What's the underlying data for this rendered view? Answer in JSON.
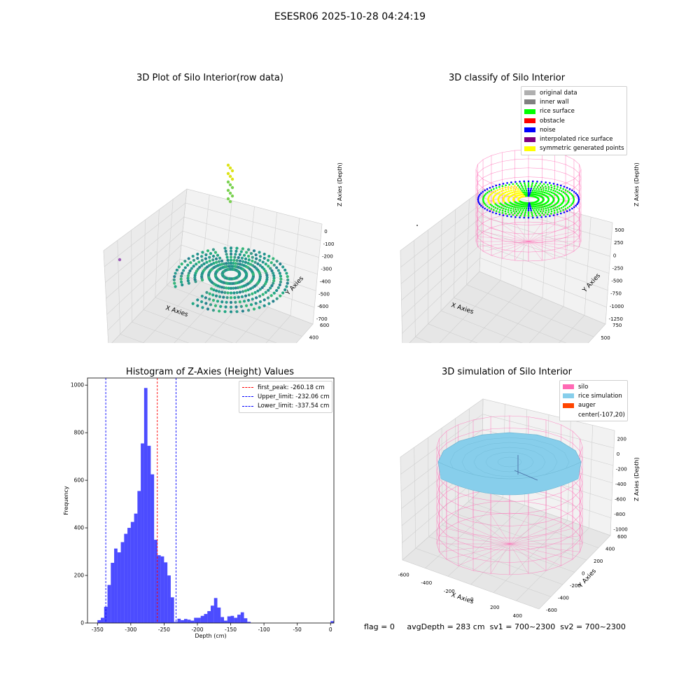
{
  "suptitle": "ESESR06 2025-10-28 04:24:19",
  "panels": {
    "raw": {
      "title": "3D Plot of Silo Interior(row data)",
      "xlabel": "X Axies",
      "ylabel": "Y Axies",
      "zlabel": "Z Axies (Depth)",
      "xticks": [
        "-1250",
        "-1000",
        "-750",
        "-500",
        "-250",
        "0",
        "250",
        "500"
      ],
      "yticks": [
        "-600",
        "-400",
        "-200",
        "0",
        "200",
        "400",
        "600"
      ],
      "zticks": [
        "0",
        "-100",
        "-200",
        "-300",
        "-400",
        "-500",
        "-600",
        "-700"
      ]
    },
    "classify": {
      "title": "3D classify of Silo Interior",
      "xlabel": "X Axies",
      "ylabel": "Y Axies",
      "zlabel": "Z Axies (Depth)",
      "xticks": [
        "-1250",
        "-1000",
        "-750",
        "-500",
        "-250",
        "0",
        "250",
        "500"
      ],
      "yticks": [
        "-750",
        "-500",
        "-250",
        "0",
        "250",
        "500",
        "750"
      ],
      "zticks": [
        "500",
        "250",
        "0",
        "-250",
        "-500",
        "-750",
        "-1000",
        "-1250"
      ],
      "legend": [
        {
          "label": "original data",
          "color": "#b0b0b0"
        },
        {
          "label": "inner wall",
          "color": "#808080"
        },
        {
          "label": "rice surface",
          "color": "#00ff00"
        },
        {
          "label": "obstacle",
          "color": "#ff0000"
        },
        {
          "label": "noise",
          "color": "#0000ff"
        },
        {
          "label": "interpolated rice surface",
          "color": "#800080"
        },
        {
          "label": "symmetric generated points",
          "color": "#ffff00"
        }
      ]
    },
    "simulation": {
      "title": "3D simulation of Silo Interior",
      "xlabel": "X Axies",
      "ylabel": "Y Axies",
      "zlabel": "Z Axies (Depth)",
      "xticks": [
        "-600",
        "-400",
        "-200",
        "0",
        "200",
        "400"
      ],
      "yticks": [
        "-600",
        "-400",
        "-200",
        "0",
        "200",
        "400",
        "600"
      ],
      "zticks": [
        "200",
        "0",
        "-200",
        "-400",
        "-600",
        "-800",
        "-1000"
      ],
      "legend": [
        {
          "label": "silo",
          "color": "#ff69b4"
        },
        {
          "label": "rice simulation",
          "color": "#87ceeb"
        },
        {
          "label": "auger",
          "color": "#ff4500"
        },
        {
          "label": "center(-107,20)",
          "color": ""
        }
      ]
    }
  },
  "chart_data": {
    "type": "bar",
    "title": "Histogram of Z-Axies (Height) Values",
    "xlabel": "Depth (cm)",
    "ylabel": "Frequency",
    "xlim": [
      -365,
      5
    ],
    "ylim": [
      0,
      1030
    ],
    "xticks": [
      -350,
      -300,
      -250,
      -200,
      -150,
      -100,
      -50,
      0
    ],
    "yticks": [
      0,
      200,
      400,
      600,
      800,
      1000
    ],
    "bin_width": 5,
    "bin_starts": [
      -350,
      -345,
      -340,
      -335,
      -330,
      -325,
      -320,
      -315,
      -310,
      -305,
      -300,
      -295,
      -290,
      -285,
      -280,
      -275,
      -270,
      -265,
      -260,
      -255,
      -250,
      -245,
      -240,
      -235,
      -230,
      -225,
      -220,
      -215,
      -210,
      -205,
      -200,
      -195,
      -190,
      -185,
      -180,
      -175,
      -170,
      -165,
      -160,
      -155,
      -150,
      -145,
      -140,
      -135,
      -130,
      -125,
      -120,
      -115,
      -110,
      -105,
      -100,
      -95,
      -90,
      -85,
      -80,
      -75,
      -70,
      -65,
      -60,
      -55,
      -50,
      -45,
      -40,
      -35,
      -30,
      -25,
      -20,
      -15,
      -10,
      -5,
      0
    ],
    "values": [
      12,
      22,
      68,
      160,
      253,
      313,
      297,
      340,
      375,
      400,
      425,
      460,
      555,
      755,
      988,
      745,
      625,
      350,
      285,
      280,
      255,
      200,
      108,
      5,
      18,
      12,
      17,
      14,
      10,
      22,
      22,
      30,
      38,
      50,
      73,
      105,
      65,
      25,
      10,
      28,
      30,
      22,
      35,
      45,
      20,
      5,
      0,
      0,
      0,
      0,
      0,
      0,
      0,
      0,
      0,
      0,
      0,
      0,
      0,
      0,
      0,
      0,
      0,
      0,
      0,
      0,
      0,
      0,
      0,
      0,
      8
    ],
    "series": [
      {
        "name": "",
        "color": "#0000ff"
      }
    ],
    "lines": [
      {
        "label": "first_peak: -260.18 cm",
        "x": -260.18,
        "color": "#ff0000"
      },
      {
        "label": "Upper_limit: -232.06 cm",
        "x": -232.06,
        "color": "#0000ff"
      },
      {
        "label": "Lower_limit: -337.54 cm",
        "x": -337.54,
        "color": "#0000ff"
      }
    ],
    "legend_position": "top-right",
    "grid": false
  },
  "footer": {
    "flag": "flag = 0",
    "avg_depth": "avgDepth = 283 cm",
    "sv1": "sv1 = 700~2300",
    "sv2": "sv2 = 700~2300"
  }
}
